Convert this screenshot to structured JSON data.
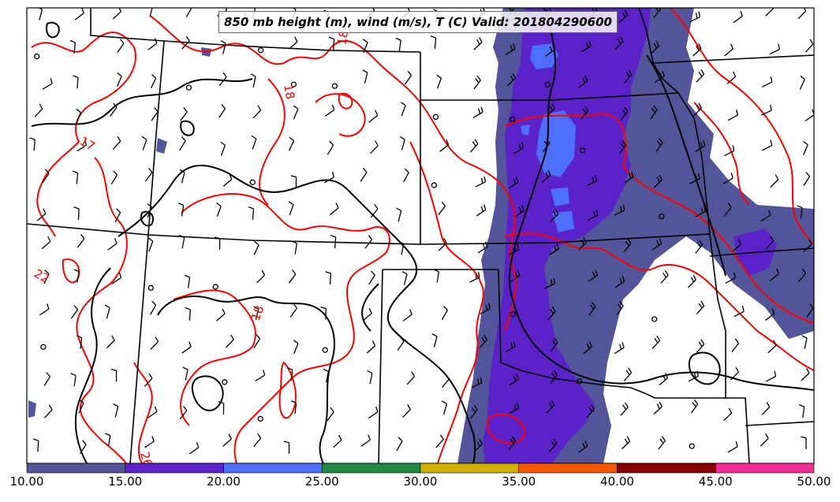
{
  "title": "850 mb height (m), wind (m/s), T (C) Valid: 201804290600",
  "contour_labels": {
    "t18a": "18",
    "t18b": "18",
    "t18c": "18",
    "t22": "22",
    "t26": "26",
    "t17": "17"
  },
  "colorbar": {
    "bins": [
      {
        "from": 10,
        "to": 15,
        "color": "#525599"
      },
      {
        "from": 15,
        "to": 20,
        "color": "#5c22c9"
      },
      {
        "from": 20,
        "to": 25,
        "color": "#4d6ffb"
      },
      {
        "from": 25,
        "to": 30,
        "color": "#1f8a46"
      },
      {
        "from": 30,
        "to": 35,
        "color": "#d0b000"
      },
      {
        "from": 35,
        "to": 40,
        "color": "#f35700"
      },
      {
        "from": 40,
        "to": 45,
        "color": "#8a0000"
      },
      {
        "from": 45,
        "to": 50,
        "color": "#f02d94"
      }
    ],
    "tick_labels": [
      "10.00",
      "15.00",
      "20.00",
      "25.00",
      "30.00",
      "35.00",
      "40.00",
      "45.00",
      "50.00"
    ]
  },
  "colors": {
    "temperature_contour": "#ff0000",
    "height_contour": "#000000",
    "border": "#000000"
  }
}
